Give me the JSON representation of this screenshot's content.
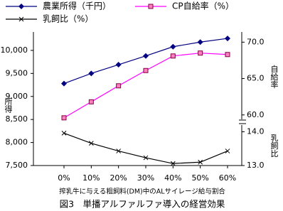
{
  "chart_data": {
    "type": "line",
    "title": "図3　単播アルファルファ導入の経営効果",
    "x_label": "搾乳牛に与える粗飼料(DM)中のALサイレージ給与割合",
    "y_label": "所得",
    "y2_label": "自給率",
    "y3_label": "乳飼比",
    "legend": "top-left",
    "categories": [
      "0%",
      "10%",
      "20%",
      "30%",
      "40%",
      "50%",
      "60%"
    ],
    "series": [
      {
        "name": "農業所得（千円）",
        "color": "#000080",
        "marker": "diamond",
        "axis": "y",
        "values": [
          9280,
          9500,
          9690,
          9880,
          10080,
          10180,
          10260
        ]
      },
      {
        "name": "CP自給率（%）",
        "color": "#ff00ff",
        "marker": "square",
        "axis": "y2",
        "values": [
          59.6,
          61.8,
          64.0,
          66.1,
          68.1,
          68.5,
          68.3
        ]
      },
      {
        "name": "乳飼比（%）",
        "color": "#000000",
        "marker": "x",
        "axis": "y3",
        "values": [
          13.96,
          13.66,
          13.43,
          13.23,
          13.06,
          13.1,
          13.43
        ]
      }
    ],
    "ylim": [
      7500,
      10400
    ],
    "yticks": [
      {
        "value": 7500,
        "label": "7,500"
      },
      {
        "value": 8000,
        "label": "8,000"
      },
      {
        "value": 8500,
        "label": "8,500"
      },
      {
        "value": 9000,
        "label": "9,000"
      },
      {
        "value": 9500,
        "label": "9,500"
      },
      {
        "value": 10000,
        "label": "10,000"
      }
    ],
    "y2lim": [
      59,
      71.4
    ],
    "y2ticks": [
      {
        "value": 60,
        "label": "60.0"
      },
      {
        "value": 65,
        "label": "65.0"
      },
      {
        "value": 70,
        "label": "70.0"
      }
    ],
    "y3lim": [
      13,
      14.2
    ],
    "y3ticks": [
      {
        "value": 13,
        "label": "13.0"
      },
      {
        "value": 14,
        "label": "14.0"
      }
    ]
  }
}
